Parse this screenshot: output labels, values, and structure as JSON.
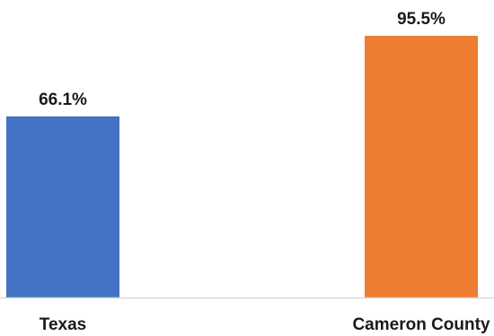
{
  "chart_data": {
    "type": "bar",
    "categories": [
      "Texas",
      "Cameron County"
    ],
    "values": [
      66.1,
      95.5
    ],
    "data_labels": [
      "66.1%",
      "95.5%"
    ],
    "colors": [
      "#4472c4",
      "#ed7d31"
    ],
    "axis_line_color": "#d9d9d9",
    "ylim": [
      0,
      100
    ],
    "grid": false,
    "legend": "none"
  }
}
